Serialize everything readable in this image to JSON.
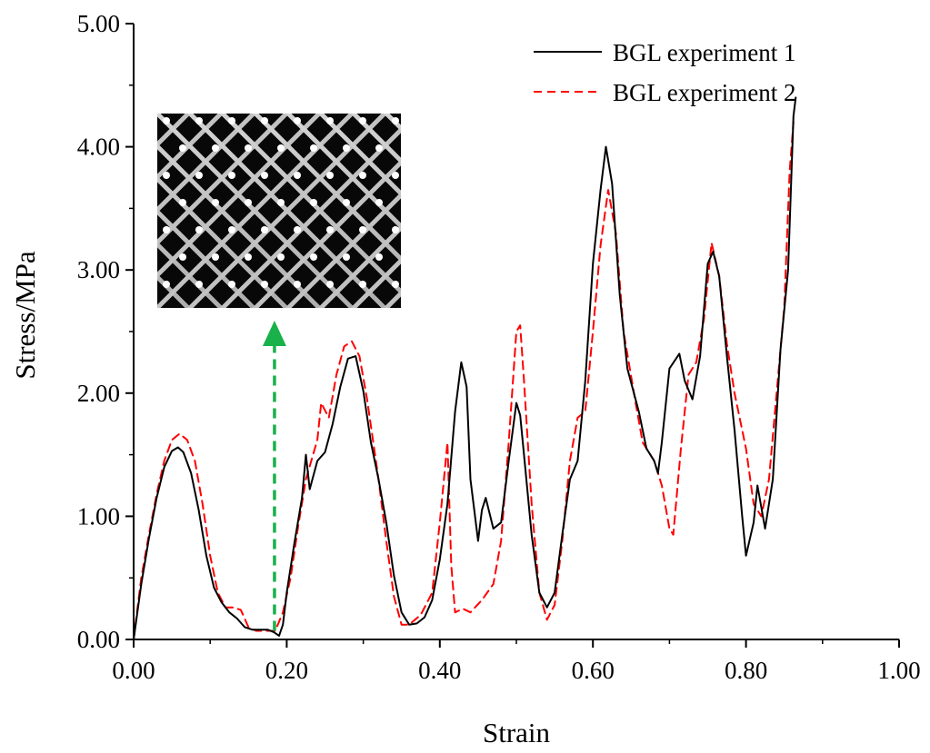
{
  "chart_data": {
    "type": "line",
    "xlabel": "Strain",
    "ylabel": "Stress/MPa",
    "xlim": [
      0,
      1
    ],
    "ylim": [
      0,
      5
    ],
    "x_ticks": [
      "0.00",
      "0.20",
      "0.40",
      "0.60",
      "0.80",
      "1.00"
    ],
    "y_ticks": [
      "0.00",
      "1.00",
      "2.00",
      "3.00",
      "4.00",
      "5.00"
    ],
    "grid": false,
    "legend_position": "top-right",
    "inset": "photo of lattice specimen (diamond cell structure) at upper-left",
    "annotation": "green dashed upward arrow at strain ≈ 0.18 pointing to the inset image",
    "series": [
      {
        "name": "BGL experiment 1",
        "color": "#000000",
        "style": "solid",
        "points": [
          [
            0.0,
            0.0
          ],
          [
            0.01,
            0.45
          ],
          [
            0.02,
            0.82
          ],
          [
            0.03,
            1.15
          ],
          [
            0.04,
            1.4
          ],
          [
            0.05,
            1.53
          ],
          [
            0.058,
            1.56
          ],
          [
            0.065,
            1.52
          ],
          [
            0.075,
            1.35
          ],
          [
            0.085,
            1.05
          ],
          [
            0.095,
            0.68
          ],
          [
            0.105,
            0.42
          ],
          [
            0.115,
            0.3
          ],
          [
            0.125,
            0.22
          ],
          [
            0.135,
            0.17
          ],
          [
            0.145,
            0.1
          ],
          [
            0.155,
            0.08
          ],
          [
            0.165,
            0.08
          ],
          [
            0.175,
            0.08
          ],
          [
            0.183,
            0.06
          ],
          [
            0.19,
            0.03
          ],
          [
            0.195,
            0.12
          ],
          [
            0.2,
            0.38
          ],
          [
            0.21,
            0.78
          ],
          [
            0.22,
            1.15
          ],
          [
            0.225,
            1.5
          ],
          [
            0.23,
            1.22
          ],
          [
            0.24,
            1.45
          ],
          [
            0.25,
            1.52
          ],
          [
            0.26,
            1.75
          ],
          [
            0.27,
            2.05
          ],
          [
            0.28,
            2.28
          ],
          [
            0.29,
            2.3
          ],
          [
            0.3,
            2.02
          ],
          [
            0.31,
            1.6
          ],
          [
            0.32,
            1.3
          ],
          [
            0.33,
            0.95
          ],
          [
            0.34,
            0.52
          ],
          [
            0.35,
            0.22
          ],
          [
            0.36,
            0.12
          ],
          [
            0.37,
            0.13
          ],
          [
            0.38,
            0.18
          ],
          [
            0.39,
            0.32
          ],
          [
            0.4,
            0.65
          ],
          [
            0.41,
            1.1
          ],
          [
            0.42,
            1.85
          ],
          [
            0.428,
            2.25
          ],
          [
            0.435,
            2.05
          ],
          [
            0.44,
            1.3
          ],
          [
            0.45,
            0.8
          ],
          [
            0.455,
            1.05
          ],
          [
            0.46,
            1.15
          ],
          [
            0.47,
            0.9
          ],
          [
            0.48,
            0.95
          ],
          [
            0.49,
            1.45
          ],
          [
            0.5,
            1.92
          ],
          [
            0.505,
            1.82
          ],
          [
            0.51,
            1.5
          ],
          [
            0.52,
            0.85
          ],
          [
            0.53,
            0.38
          ],
          [
            0.54,
            0.26
          ],
          [
            0.55,
            0.38
          ],
          [
            0.56,
            0.85
          ],
          [
            0.57,
            1.3
          ],
          [
            0.58,
            1.45
          ],
          [
            0.59,
            2.1
          ],
          [
            0.6,
            3.05
          ],
          [
            0.61,
            3.65
          ],
          [
            0.617,
            4.0
          ],
          [
            0.625,
            3.7
          ],
          [
            0.635,
            2.8
          ],
          [
            0.645,
            2.2
          ],
          [
            0.66,
            1.85
          ],
          [
            0.67,
            1.55
          ],
          [
            0.68,
            1.45
          ],
          [
            0.685,
            1.35
          ],
          [
            0.69,
            1.6
          ],
          [
            0.7,
            2.2
          ],
          [
            0.713,
            2.32
          ],
          [
            0.72,
            2.1
          ],
          [
            0.73,
            1.95
          ],
          [
            0.74,
            2.3
          ],
          [
            0.75,
            3.05
          ],
          [
            0.757,
            3.15
          ],
          [
            0.765,
            2.95
          ],
          [
            0.775,
            2.3
          ],
          [
            0.785,
            1.7
          ],
          [
            0.795,
            1.0
          ],
          [
            0.8,
            0.68
          ],
          [
            0.81,
            0.95
          ],
          [
            0.815,
            1.25
          ],
          [
            0.825,
            0.9
          ],
          [
            0.835,
            1.3
          ],
          [
            0.845,
            2.35
          ],
          [
            0.855,
            3.0
          ],
          [
            0.862,
            4.25
          ],
          [
            0.865,
            4.4
          ]
        ]
      },
      {
        "name": "BGL experiment 2",
        "color": "#ff0000",
        "style": "dashed",
        "points": [
          [
            0.0,
            0.0
          ],
          [
            0.01,
            0.5
          ],
          [
            0.02,
            0.85
          ],
          [
            0.03,
            1.18
          ],
          [
            0.04,
            1.45
          ],
          [
            0.05,
            1.62
          ],
          [
            0.06,
            1.67
          ],
          [
            0.07,
            1.62
          ],
          [
            0.08,
            1.45
          ],
          [
            0.09,
            1.1
          ],
          [
            0.1,
            0.68
          ],
          [
            0.11,
            0.38
          ],
          [
            0.12,
            0.26
          ],
          [
            0.13,
            0.26
          ],
          [
            0.14,
            0.24
          ],
          [
            0.15,
            0.1
          ],
          [
            0.16,
            0.07
          ],
          [
            0.175,
            0.07
          ],
          [
            0.185,
            0.07
          ],
          [
            0.195,
            0.22
          ],
          [
            0.205,
            0.5
          ],
          [
            0.215,
            0.92
          ],
          [
            0.225,
            1.3
          ],
          [
            0.24,
            1.62
          ],
          [
            0.245,
            1.92
          ],
          [
            0.255,
            1.8
          ],
          [
            0.265,
            2.15
          ],
          [
            0.275,
            2.38
          ],
          [
            0.285,
            2.42
          ],
          [
            0.295,
            2.3
          ],
          [
            0.305,
            1.95
          ],
          [
            0.32,
            1.3
          ],
          [
            0.33,
            0.8
          ],
          [
            0.34,
            0.35
          ],
          [
            0.35,
            0.12
          ],
          [
            0.36,
            0.12
          ],
          [
            0.375,
            0.2
          ],
          [
            0.39,
            0.38
          ],
          [
            0.4,
            0.95
          ],
          [
            0.41,
            1.6
          ],
          [
            0.415,
            0.6
          ],
          [
            0.42,
            0.22
          ],
          [
            0.43,
            0.25
          ],
          [
            0.44,
            0.22
          ],
          [
            0.455,
            0.32
          ],
          [
            0.47,
            0.45
          ],
          [
            0.48,
            0.8
          ],
          [
            0.49,
            1.6
          ],
          [
            0.5,
            2.5
          ],
          [
            0.505,
            2.55
          ],
          [
            0.51,
            2.1
          ],
          [
            0.52,
            1.1
          ],
          [
            0.53,
            0.38
          ],
          [
            0.54,
            0.16
          ],
          [
            0.55,
            0.28
          ],
          [
            0.56,
            0.8
          ],
          [
            0.57,
            1.45
          ],
          [
            0.58,
            1.8
          ],
          [
            0.59,
            1.85
          ],
          [
            0.6,
            2.5
          ],
          [
            0.61,
            3.2
          ],
          [
            0.62,
            3.65
          ],
          [
            0.63,
            3.3
          ],
          [
            0.64,
            2.5
          ],
          [
            0.655,
            1.95
          ],
          [
            0.665,
            1.6
          ],
          [
            0.675,
            1.5
          ],
          [
            0.68,
            1.45
          ],
          [
            0.69,
            1.25
          ],
          [
            0.7,
            0.9
          ],
          [
            0.705,
            0.85
          ],
          [
            0.715,
            1.55
          ],
          [
            0.725,
            2.15
          ],
          [
            0.735,
            2.25
          ],
          [
            0.745,
            2.6
          ],
          [
            0.755,
            3.22
          ],
          [
            0.765,
            2.95
          ],
          [
            0.775,
            2.4
          ],
          [
            0.785,
            2.0
          ],
          [
            0.8,
            1.55
          ],
          [
            0.81,
            1.1
          ],
          [
            0.82,
            1.0
          ],
          [
            0.83,
            1.3
          ],
          [
            0.84,
            2.0
          ],
          [
            0.85,
            2.7
          ],
          [
            0.857,
            3.8
          ],
          [
            0.862,
            4.2
          ]
        ]
      }
    ]
  }
}
